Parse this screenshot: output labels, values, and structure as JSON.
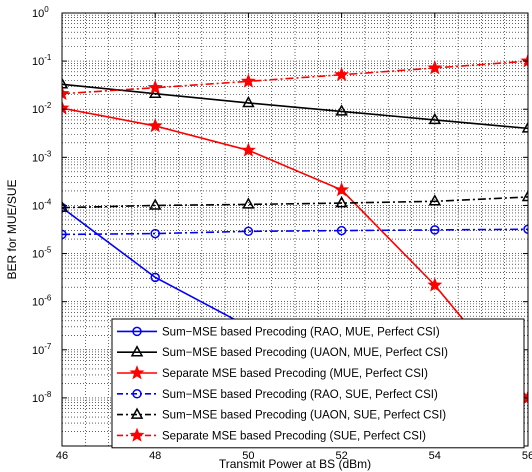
{
  "chart_data": {
    "type": "line",
    "xlabel": "Transmit Power at BS (dBm)",
    "ylabel": "BER for MUE/SUE",
    "xlim": [
      46,
      56
    ],
    "ylim_log10": [
      -9,
      0
    ],
    "y_scale": "log",
    "grid": "on (major and minor, dotted)",
    "legend_placement": "bottom-right",
    "x_ticks": [
      "46",
      "48",
      "50",
      "52",
      "54",
      "56"
    ],
    "y_ticks": [
      {
        "base": "10",
        "exp": "0"
      },
      {
        "base": "10",
        "exp": "-1"
      },
      {
        "base": "10",
        "exp": "-2"
      },
      {
        "base": "10",
        "exp": "-3"
      },
      {
        "base": "10",
        "exp": "-4"
      },
      {
        "base": "10",
        "exp": "-5"
      },
      {
        "base": "10",
        "exp": "-6"
      },
      {
        "base": "10",
        "exp": "-7"
      },
      {
        "base": "10",
        "exp": "-8"
      }
    ],
    "series": [
      {
        "name": "Sum−MSE based Precoding (RAO, MUE, Perfect CSI)",
        "color": "#0000ff",
        "dash": "solid",
        "marker": "circle",
        "x": [
          46,
          48,
          50,
          52
        ],
        "y": [
          9e-05,
          3.2e-06,
          3e-07,
          2e-08
        ]
      },
      {
        "name": "Sum−MSE based Precoding (UAON, MUE, Perfect CSI)",
        "color": "#000000",
        "dash": "solid",
        "marker": "triangle",
        "x": [
          46,
          48,
          50,
          52,
          54,
          56
        ],
        "y": [
          0.033,
          0.021,
          0.0135,
          0.009,
          0.006,
          0.004
        ]
      },
      {
        "name": "Separate MSE based Precoding (MUE, Perfect CSI)",
        "color": "#ff0000",
        "dash": "solid",
        "marker": "star",
        "x": [
          46,
          48,
          50,
          52,
          54,
          56
        ],
        "y": [
          0.0105,
          0.0045,
          0.0014,
          0.00021,
          2.2e-06,
          1e-08
        ]
      },
      {
        "name": "Sum−MSE based Precoding (RAO, SUE, Perfect CSI)",
        "color": "#0000ff",
        "dash": "dashdot",
        "marker": "circle",
        "x": [
          46,
          48,
          50,
          52,
          54,
          56
        ],
        "y": [
          2.5e-05,
          2.6e-05,
          2.9e-05,
          3e-05,
          3.1e-05,
          3.2e-05
        ]
      },
      {
        "name": "Sum−MSE based Precoding (UAON, SUE, Perfect CSI)",
        "color": "#000000",
        "dash": "dashdot",
        "marker": "triangle",
        "x": [
          46,
          48,
          50,
          52,
          54,
          56
        ],
        "y": [
          9e-05,
          0.0001,
          0.000105,
          0.000112,
          0.000122,
          0.00015
        ]
      },
      {
        "name": "Separate MSE based Precoding (SUE, Perfect CSI)",
        "color": "#ff0000",
        "dash": "dashdot",
        "marker": "star",
        "x": [
          46,
          48,
          50,
          52,
          54,
          56
        ],
        "y": [
          0.021,
          0.028,
          0.038,
          0.052,
          0.072,
          0.1
        ]
      }
    ]
  }
}
